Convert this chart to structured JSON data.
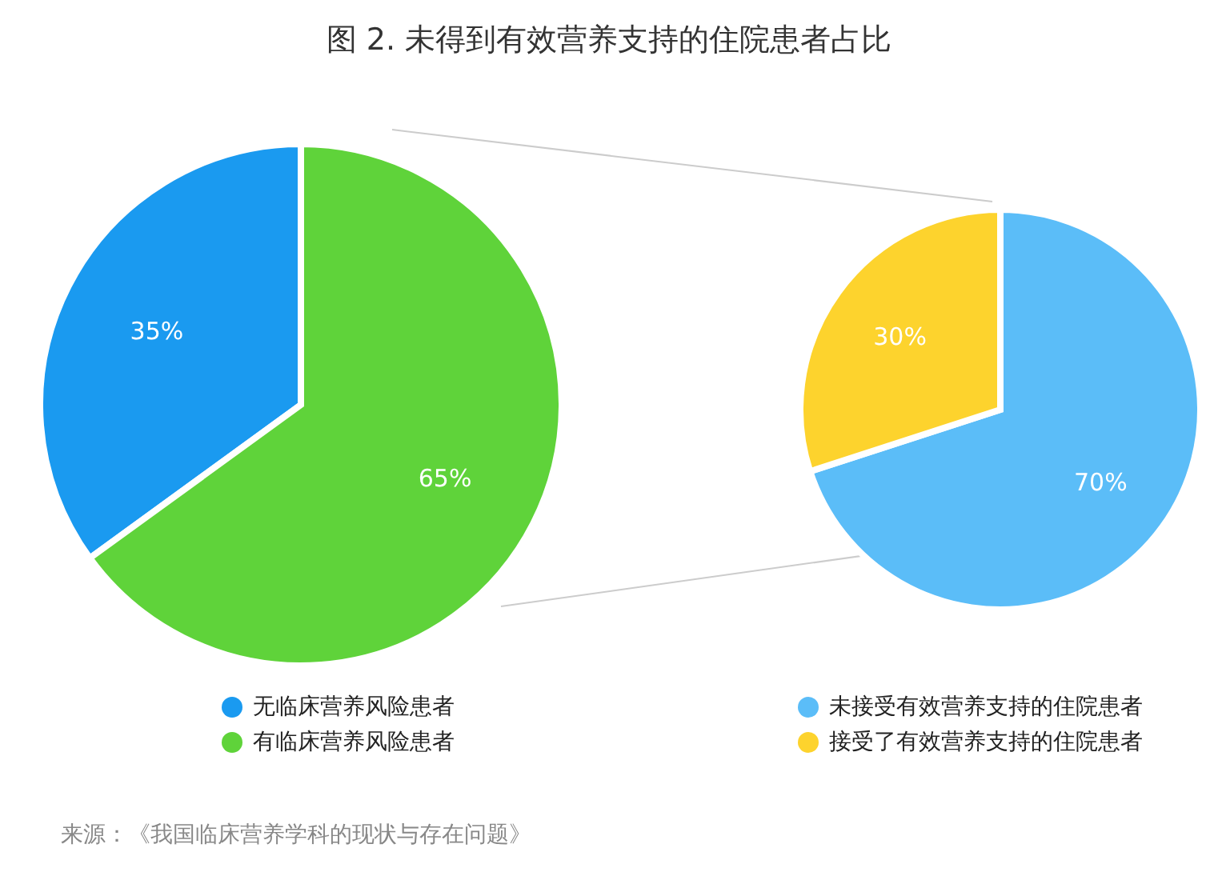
{
  "chart_data": [
    {
      "type": "pie",
      "title": "图 2. 未得到有效营养支持的住院患者占比",
      "categories": [
        "无临床营养风险患者",
        "有临床营养风险患者"
      ],
      "values": [
        35,
        65
      ],
      "colors": [
        "#1a9af0",
        "#5fd33a"
      ],
      "value_labels": [
        "35%",
        "65%"
      ],
      "legend": "bottom",
      "annotations": [
        "来源：《我国临床营养学科的现状与存在问题》"
      ]
    },
    {
      "type": "pie",
      "categories": [
        "未接受有效营养支持的住院患者",
        "接受了有效营养支持的住院患者"
      ],
      "values": [
        70,
        30
      ],
      "colors": [
        "#5bbdf8",
        "#fdd32d"
      ],
      "value_labels": [
        "70%",
        "30%"
      ],
      "legend": "bottom"
    }
  ]
}
